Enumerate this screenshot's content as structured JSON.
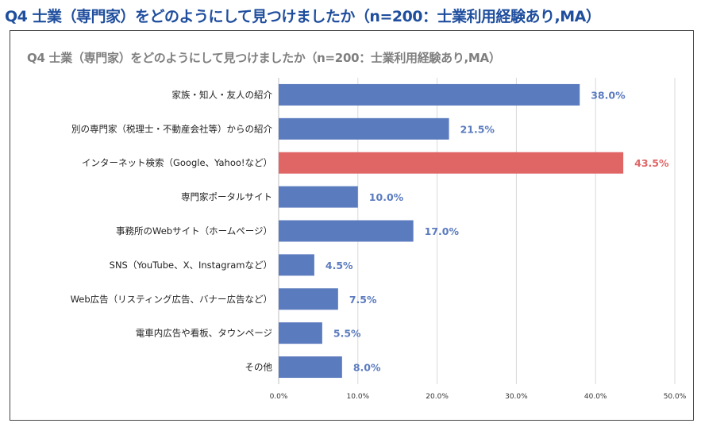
{
  "page_title": "Q4 士業（専門家）をどのようにして見つけましたか（n=200：士業利用経験あり,MA）",
  "chart_data": {
    "type": "bar",
    "orientation": "horizontal",
    "title": "Q4 士業（専門家）をどのようにして見つけましたか（n=200：士業利用経験あり,MA）",
    "categories": [
      "家族・知人・友人の紹介",
      "別の専門家（税理士・不動産会社等）からの紹介",
      "インターネット検索（Google、Yahoo!など）",
      "専門家ポータルサイト",
      "事務所のWebサイト（ホームページ）",
      "SNS（YouTube、X、Instagramなど）",
      "Web広告（リスティング広告、バナー広告など）",
      "電車内広告や看板、タウンページ",
      "その他"
    ],
    "values": [
      38.0,
      21.5,
      43.5,
      10.0,
      17.0,
      4.5,
      7.5,
      5.5,
      8.0
    ],
    "value_labels": [
      "38.0%",
      "21.5%",
      "43.5%",
      "10.0%",
      "17.0%",
      "4.5%",
      "7.5%",
      "5.5%",
      "8.0%"
    ],
    "highlight_index": 2,
    "xlim": [
      0,
      50
    ],
    "xticks": [
      0,
      10,
      20,
      30,
      40,
      50
    ],
    "xtick_labels": [
      "0.0%",
      "10.0%",
      "20.0%",
      "30.0%",
      "40.0%",
      "50.0%"
    ],
    "xlabel": "",
    "ylabel": "",
    "grid": true,
    "colors": {
      "default": "#5b7bbf",
      "highlight": "#e06666",
      "label_default": "#5b7bbf",
      "label_highlight": "#e06666"
    }
  }
}
